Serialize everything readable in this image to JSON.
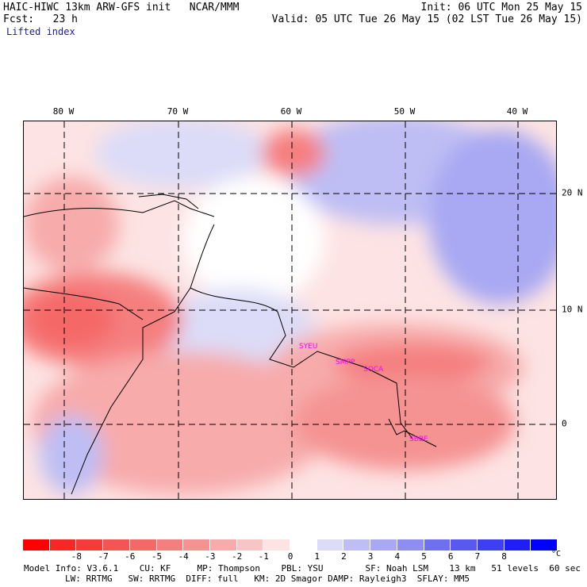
{
  "header": {
    "model_line": "HAIC-HIWC 13km ARW-GFS init   NCAR/MMM",
    "forecast_line": "Fcst:   23 h",
    "field_name": "Lifted index",
    "init_line": "Init: 06 UTC Mon 25 May 15",
    "valid_line": "Valid: 05 UTC Tue 26 May 15 (02 LST Tue 26 May 15)"
  },
  "map": {
    "longitude_labels": [
      "80 W",
      "70 W",
      "60 W",
      "50 W",
      "40 W"
    ],
    "latitude_labels": [
      "20 N",
      "10 N",
      "0"
    ],
    "stations": [
      "SYEU",
      "SMPP",
      "SOCA",
      "SBBE"
    ]
  },
  "colorbar": {
    "ticks": [
      "-8",
      "-7",
      "-6",
      "-5",
      "-4",
      "-3",
      "-2",
      "-1",
      "0",
      "1",
      "2",
      "3",
      "4",
      "5",
      "6",
      "7",
      "8"
    ],
    "unit": "°C",
    "colors": [
      "#ff0000",
      "#f52727",
      "#f53b3b",
      "#f55454",
      "#f56868",
      "#f57f7f",
      "#f59393",
      "#f7abab",
      "#f9c4c4",
      "#fde3e3",
      "#ffffff",
      "#dcdcf8",
      "#bebef4",
      "#a8a8f3",
      "#8d8df2",
      "#6f6ff1",
      "#5959f2",
      "#3f3ff2",
      "#1f1ff5",
      "#0000ff"
    ]
  },
  "footer": {
    "line1": "Model Info: V3.6.1    CU: KF     MP: Thompson    PBL: YSU        SF: Noah LSM    13 km   51 levels  60 sec",
    "line2": "LW: RRTMG   SW: RRTMG  DIFF: full   KM: 2D Smagor DAMP: Rayleigh3  SFLAY: MM5"
  }
}
